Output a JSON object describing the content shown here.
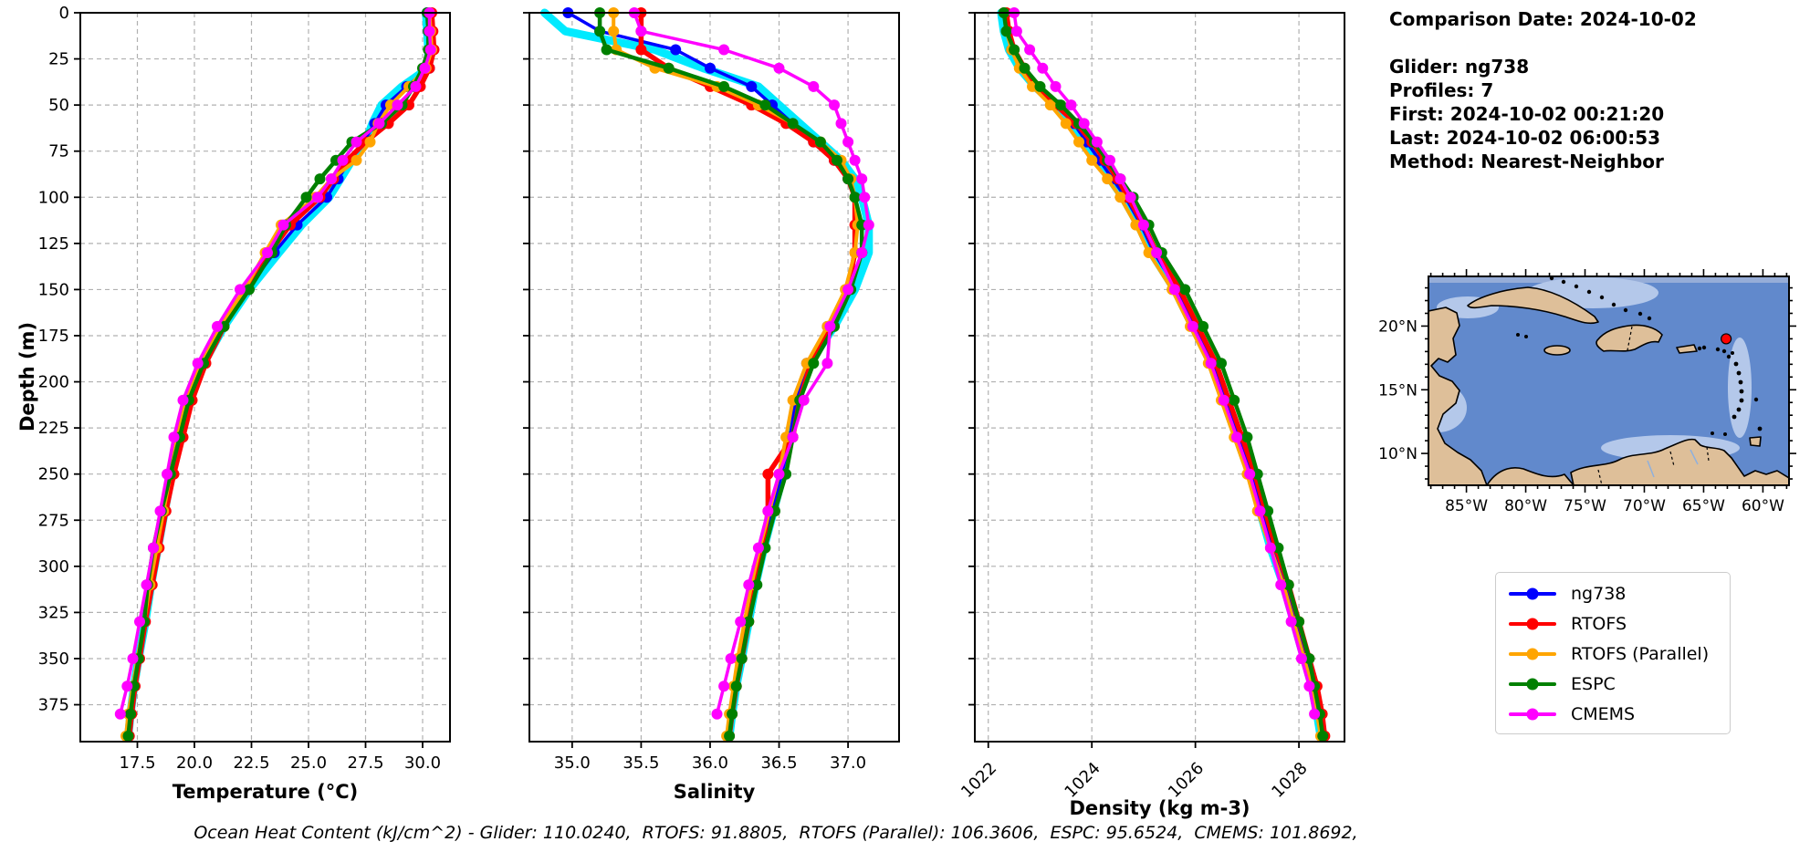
{
  "info": {
    "lines": [
      "Comparison Date: 2024-10-02",
      "",
      "Glider: ng738",
      "Profiles: 7",
      "First: 2024-10-02 00:21:20",
      "Last: 2024-10-02 06:00:53",
      "Method: Nearest-Neighbor"
    ]
  },
  "annotation": {
    "text": "Ocean Heat Content (kJ/cm^2) - Glider: 110.0240,  RTOFS: 91.8805,  RTOFS (Parallel): 106.3606,  ESPC: 95.6524,  CMEMS: 101.8692,"
  },
  "legend": {
    "items": [
      {
        "label": "ng738",
        "color": "#0000ff"
      },
      {
        "label": "RTOFS",
        "color": "#ff0000"
      },
      {
        "label": "RTOFS (Parallel)",
        "color": "#ffa500"
      },
      {
        "label": "ESPC",
        "color": "#008000"
      },
      {
        "label": "CMEMS",
        "color": "#ff00ff"
      }
    ]
  },
  "map": {
    "lon_domain": [
      88.2,
      57.8
    ],
    "lat_domain": [
      23.9,
      7.5
    ],
    "lon_ticks": [
      85,
      80,
      75,
      70,
      65,
      60
    ],
    "lon_labels": [
      "85°W",
      "80°W",
      "75°W",
      "70°W",
      "65°W",
      "60°W"
    ],
    "lat_ticks": [
      20,
      15,
      10
    ],
    "lat_labels": [
      "20°N",
      "15°N",
      "10°N"
    ],
    "marker": {
      "lon_w": 63.1,
      "lat_n": 19.0,
      "color": "#ff0000"
    }
  },
  "chart_data": {
    "type": "line",
    "title": "",
    "legend_position": "lower right (separate box)",
    "grid": true,
    "depth_axis": {
      "label": "Depth (m)",
      "domain": [
        0,
        395
      ],
      "ticks": [
        0,
        25,
        50,
        75,
        100,
        125,
        150,
        175,
        200,
        225,
        250,
        275,
        300,
        325,
        350,
        375
      ]
    },
    "depths": [
      0,
      10,
      20,
      30,
      40,
      50,
      60,
      70,
      80,
      90,
      100,
      115,
      130,
      150,
      170,
      190,
      210,
      230,
      250,
      270,
      290,
      310,
      330,
      350,
      365,
      380,
      392
    ],
    "series": [
      {
        "id": "glider_raw",
        "label": "",
        "note": "unlabeled thick cyan raw glider profiles",
        "color": "#00eaff",
        "width": 9,
        "markers": false
      },
      {
        "id": "ng738",
        "label": "ng738",
        "color": "#0000ff",
        "width": 3.5,
        "markers": true
      },
      {
        "id": "rtofs",
        "label": "RTOFS",
        "color": "#ff0000",
        "width": 5.5,
        "markers": true
      },
      {
        "id": "rtofs_parallel",
        "label": "RTOFS (Parallel)",
        "color": "#ffa500",
        "width": 4,
        "markers": true
      },
      {
        "id": "espc",
        "label": "ESPC",
        "color": "#008000",
        "width": 4.5,
        "markers": true
      },
      {
        "id": "cmems",
        "label": "CMEMS",
        "color": "#ff00ff",
        "width": 3.5,
        "markers": true
      }
    ],
    "charts": [
      {
        "id": "temperature",
        "xlabel": "Temperature (°C)",
        "x_domain": [
          15.0,
          31.2
        ],
        "x_ticks": [
          17.5,
          20.0,
          22.5,
          25.0,
          27.5,
          30.0
        ],
        "x_tick_labels": [
          "17.5",
          "20.0",
          "22.5",
          "25.0",
          "27.5",
          "30.0"
        ],
        "tick_rotation": 0,
        "values": {
          "glider_raw": [
            30.15,
            30.2,
            30.25,
            30.25,
            29.1,
            28.2,
            27.8,
            27.5,
            26.9,
            26.4,
            25.9,
            24.7,
            23.7,
            22.4,
            21.3,
            20.4,
            19.7,
            19.3,
            19.0,
            18.7,
            18.4,
            18.1,
            17.85,
            17.55,
            17.35,
            17.2,
            17.1
          ],
          "ng738": [
            30.2,
            30.25,
            30.3,
            30.3,
            29.3,
            28.4,
            27.9,
            27.4,
            26.8,
            26.3,
            25.8,
            24.5,
            23.5,
            22.3,
            21.2,
            20.3,
            19.6,
            19.2,
            18.9,
            18.6,
            18.3,
            18.0,
            17.8,
            17.5,
            17.3,
            17.15,
            17.05
          ],
          "rtofs": [
            30.4,
            30.45,
            30.5,
            30.3,
            29.9,
            29.4,
            28.5,
            27.5,
            26.7,
            26.1,
            25.5,
            24.2,
            23.3,
            22.3,
            21.3,
            20.5,
            19.9,
            19.5,
            19.1,
            18.75,
            18.45,
            18.15,
            17.85,
            17.6,
            17.4,
            17.25,
            17.15
          ],
          "rtofs_parallel": [
            30.3,
            30.35,
            30.4,
            30.15,
            29.4,
            28.6,
            28.05,
            27.7,
            27.1,
            26.0,
            25.3,
            23.8,
            23.1,
            22.2,
            21.1,
            20.3,
            19.65,
            19.25,
            18.95,
            18.65,
            18.35,
            18.05,
            17.8,
            17.5,
            17.3,
            17.1,
            17.0
          ],
          "espc": [
            30.2,
            30.25,
            30.25,
            30.0,
            29.6,
            29.1,
            28.2,
            26.9,
            26.2,
            25.5,
            24.9,
            24.0,
            23.4,
            22.4,
            21.3,
            20.4,
            19.75,
            19.35,
            18.95,
            18.55,
            18.2,
            17.95,
            17.8,
            17.55,
            17.35,
            17.2,
            17.1
          ],
          "cmems": [
            30.3,
            30.3,
            30.35,
            30.1,
            29.7,
            28.9,
            28.1,
            27.1,
            26.5,
            26.0,
            25.4,
            23.9,
            23.2,
            22.0,
            21.0,
            20.15,
            19.5,
            19.1,
            18.8,
            18.5,
            18.2,
            17.9,
            17.6,
            17.3,
            17.05,
            16.75,
            null
          ]
        }
      },
      {
        "id": "salinity",
        "xlabel": "Salinity",
        "x_domain": [
          34.69,
          37.37
        ],
        "x_ticks": [
          35.0,
          35.5,
          36.0,
          36.5,
          37.0
        ],
        "x_tick_labels": [
          "35.0",
          "35.5",
          "36.0",
          "36.5",
          "37.0"
        ],
        "tick_rotation": 0,
        "values": {
          "glider_raw": [
            34.8,
            34.95,
            35.6,
            35.95,
            36.35,
            36.5,
            36.65,
            36.8,
            36.95,
            37.05,
            37.1,
            37.15,
            37.15,
            37.05,
            36.9,
            36.72,
            36.63,
            36.58,
            36.53,
            36.46,
            36.39,
            36.33,
            36.28,
            36.23,
            36.19,
            36.16,
            36.14
          ],
          "ng738": [
            34.97,
            35.2,
            35.75,
            36.0,
            36.3,
            36.45,
            36.6,
            36.75,
            36.9,
            37.0,
            37.05,
            37.1,
            37.1,
            37.0,
            36.85,
            36.7,
            36.62,
            36.58,
            36.52,
            36.45,
            36.38,
            36.32,
            36.27,
            36.22,
            36.18,
            36.15,
            36.13
          ],
          "rtofs": [
            35.5,
            35.5,
            35.5,
            35.7,
            36.0,
            36.3,
            36.55,
            36.75,
            36.9,
            37.0,
            37.05,
            37.05,
            37.05,
            37.0,
            36.87,
            36.73,
            36.65,
            36.6,
            36.42,
            36.42,
            36.38,
            36.33,
            36.28,
            36.23,
            36.19,
            36.16,
            36.14
          ],
          "rtofs_parallel": [
            35.3,
            35.3,
            35.32,
            35.6,
            36.05,
            36.35,
            36.6,
            36.8,
            36.95,
            37.02,
            37.05,
            37.07,
            37.05,
            36.98,
            36.85,
            36.7,
            36.6,
            36.55,
            36.5,
            36.43,
            36.36,
            36.3,
            36.25,
            36.2,
            36.17,
            36.14,
            36.12
          ],
          "espc": [
            35.2,
            35.2,
            35.25,
            35.7,
            36.1,
            36.4,
            36.6,
            36.8,
            36.92,
            37.0,
            37.05,
            37.1,
            37.1,
            37.02,
            36.9,
            36.75,
            36.65,
            36.6,
            36.55,
            36.47,
            36.4,
            36.34,
            36.28,
            36.23,
            36.19,
            36.16,
            36.14
          ],
          "cmems": [
            35.45,
            35.5,
            36.1,
            36.5,
            36.75,
            36.9,
            36.95,
            37.0,
            37.05,
            37.1,
            37.12,
            37.15,
            37.1,
            37.0,
            36.87,
            36.85,
            36.68,
            36.6,
            36.5,
            36.42,
            36.35,
            36.28,
            36.22,
            36.15,
            36.1,
            36.05,
            null
          ]
        }
      },
      {
        "id": "density",
        "xlabel": "Density (kg m-3)",
        "x_domain": [
          1021.74,
          1028.88
        ],
        "x_ticks": [
          1022,
          1024,
          1026,
          1028
        ],
        "x_tick_labels": [
          "1022",
          "1024",
          "1026",
          "1028"
        ],
        "tick_rotation": 45,
        "values": {
          "glider_raw": [
            1022.25,
            1022.3,
            1022.4,
            1022.6,
            1022.9,
            1023.3,
            1023.6,
            1023.85,
            1024.1,
            1024.35,
            1024.6,
            1024.9,
            1025.15,
            1025.6,
            1025.95,
            1026.3,
            1026.55,
            1026.8,
            1027.05,
            1027.25,
            1027.45,
            1027.7,
            1027.9,
            1028.1,
            1028.25,
            1028.35,
            1028.42
          ],
          "ng738": [
            1022.3,
            1022.35,
            1022.45,
            1022.65,
            1022.95,
            1023.35,
            1023.65,
            1023.9,
            1024.15,
            1024.4,
            1024.65,
            1024.95,
            1025.2,
            1025.65,
            1026.0,
            1026.35,
            1026.6,
            1026.85,
            1027.1,
            1027.3,
            1027.5,
            1027.75,
            1027.95,
            1028.15,
            1028.3,
            1028.4,
            1028.46
          ],
          "rtofs": [
            1022.35,
            1022.4,
            1022.5,
            1022.7,
            1022.95,
            1023.3,
            1023.7,
            1024.0,
            1024.25,
            1024.5,
            1024.7,
            1025.0,
            1025.25,
            1025.7,
            1026.05,
            1026.4,
            1026.65,
            1026.9,
            1027.15,
            1027.35,
            1027.55,
            1027.8,
            1028.0,
            1028.2,
            1028.35,
            1028.45,
            1028.5
          ],
          "rtofs_parallel": [
            1022.3,
            1022.35,
            1022.45,
            1022.6,
            1022.85,
            1023.2,
            1023.5,
            1023.75,
            1024.0,
            1024.3,
            1024.55,
            1024.85,
            1025.1,
            1025.55,
            1025.9,
            1026.25,
            1026.5,
            1026.75,
            1027.0,
            1027.2,
            1027.45,
            1027.7,
            1027.9,
            1028.1,
            1028.25,
            1028.35,
            1028.42
          ],
          "espc": [
            1022.3,
            1022.35,
            1022.5,
            1022.7,
            1023.0,
            1023.4,
            1023.75,
            1024.05,
            1024.3,
            1024.55,
            1024.8,
            1025.1,
            1025.35,
            1025.8,
            1026.15,
            1026.5,
            1026.75,
            1027.0,
            1027.2,
            1027.4,
            1027.6,
            1027.8,
            1028.0,
            1028.2,
            1028.3,
            1028.4,
            1028.46
          ],
          "cmems": [
            1022.5,
            1022.55,
            1022.8,
            1023.05,
            1023.3,
            1023.6,
            1023.85,
            1024.1,
            1024.35,
            1024.55,
            1024.75,
            1025.0,
            1025.25,
            1025.6,
            1025.95,
            1026.3,
            1026.55,
            1026.8,
            1027.05,
            1027.25,
            1027.45,
            1027.65,
            1027.85,
            1028.05,
            1028.2,
            1028.3,
            null
          ]
        }
      }
    ]
  }
}
